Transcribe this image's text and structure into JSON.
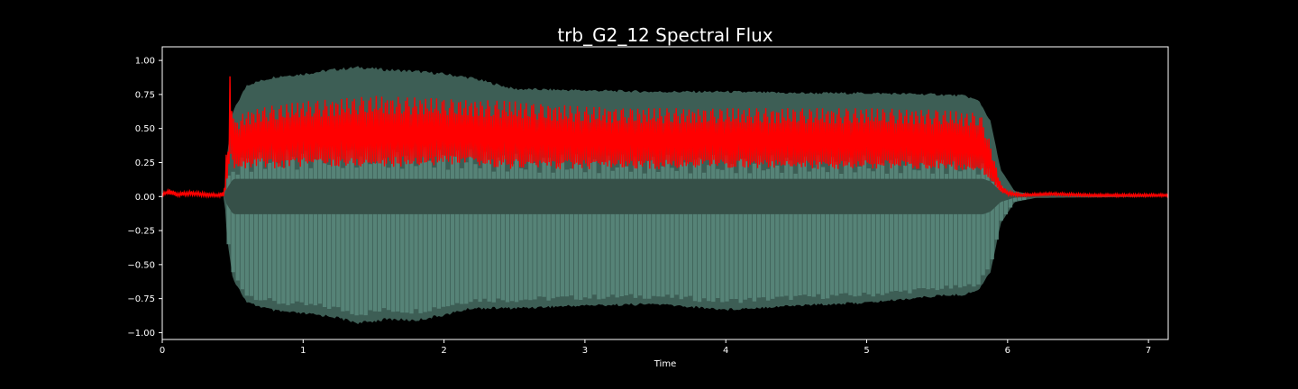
{
  "chart_data": {
    "type": "line",
    "title": "trb_G2_12 Spectral Flux",
    "xlabel": "Time",
    "ylabel": "",
    "xlim": [
      0,
      7.14
    ],
    "ylim": [
      -1.05,
      1.1
    ],
    "x_ticks": [
      "0",
      "1",
      "2",
      "3",
      "4",
      "5",
      "6",
      "7"
    ],
    "x_tick_values": [
      0,
      1,
      2,
      3,
      4,
      5,
      6,
      7
    ],
    "y_ticks": [
      "1.00",
      "0.75",
      "0.50",
      "0.25",
      "0.00",
      "−0.25",
      "−0.50",
      "−0.75",
      "−1.00"
    ],
    "y_tick_values": [
      1.0,
      0.75,
      0.5,
      0.25,
      0.0,
      -0.25,
      -0.5,
      -0.75,
      -1.0
    ],
    "grid": false,
    "colors": {
      "background": "#000000",
      "axes_edge": "#ffffff",
      "waveform_outer": "#3d5e55",
      "waveform_inner": "#5a8a7e",
      "waveform_core": "#365048",
      "flux_line": "#ff0000"
    },
    "series": [
      {
        "kind": "waveform",
        "envelope_x": [
          0,
          0.44,
          0.46,
          0.5,
          0.6,
          0.8,
          1.0,
          1.2,
          1.4,
          1.6,
          1.8,
          2.0,
          2.2,
          2.5,
          3.0,
          3.5,
          4.0,
          4.5,
          5.0,
          5.5,
          5.7,
          5.8,
          5.88,
          5.95,
          6.05,
          6.2,
          7.14
        ],
        "envelope_upper": [
          0.0,
          0.0,
          0.3,
          0.62,
          0.82,
          0.88,
          0.9,
          0.93,
          0.95,
          0.93,
          0.92,
          0.9,
          0.87,
          0.79,
          0.78,
          0.77,
          0.77,
          0.76,
          0.76,
          0.75,
          0.74,
          0.7,
          0.55,
          0.2,
          0.04,
          0.01,
          0.0
        ],
        "envelope_lower": [
          0.0,
          0.0,
          -0.3,
          -0.6,
          -0.78,
          -0.84,
          -0.86,
          -0.88,
          -0.93,
          -0.9,
          -0.91,
          -0.87,
          -0.82,
          -0.82,
          -0.8,
          -0.79,
          -0.83,
          -0.8,
          -0.78,
          -0.73,
          -0.72,
          -0.68,
          -0.55,
          -0.2,
          -0.04,
          -0.01,
          0.0
        ]
      },
      {
        "kind": "spectral_flux",
        "x": [
          0,
          0.03,
          0.06,
          0.1,
          0.2,
          0.3,
          0.4,
          0.44,
          0.46,
          0.47,
          0.48,
          0.49,
          0.5,
          0.51,
          0.52,
          0.55,
          0.6,
          0.7,
          0.8,
          1.0,
          1.5,
          2.0,
          2.5,
          3.0,
          3.5,
          4.0,
          4.5,
          5.0,
          5.5,
          5.7,
          5.8,
          5.85,
          5.9,
          5.95,
          6.0,
          6.1,
          6.3,
          6.6,
          7.0,
          7.14
        ],
        "upper": [
          0.03,
          0.04,
          0.06,
          0.03,
          0.04,
          0.03,
          0.02,
          0.05,
          0.42,
          0.3,
          1.0,
          0.7,
          0.88,
          0.5,
          0.55,
          0.6,
          0.63,
          0.66,
          0.67,
          0.7,
          0.74,
          0.72,
          0.7,
          0.66,
          0.65,
          0.65,
          0.65,
          0.65,
          0.64,
          0.62,
          0.62,
          0.5,
          0.3,
          0.1,
          0.04,
          0.02,
          0.03,
          0.02,
          0.02,
          0.02
        ],
        "lower": [
          0.0,
          0.02,
          0.01,
          0.0,
          0.01,
          0.0,
          0.0,
          0.0,
          0.1,
          0.2,
          0.3,
          0.25,
          0.2,
          0.2,
          0.22,
          0.2,
          0.2,
          0.22,
          0.2,
          0.22,
          0.21,
          0.23,
          0.2,
          0.2,
          0.2,
          0.21,
          0.2,
          0.2,
          0.2,
          0.19,
          0.18,
          0.15,
          0.08,
          0.03,
          0.01,
          0.0,
          0.01,
          0.0,
          0.0,
          0.0
        ]
      }
    ]
  }
}
